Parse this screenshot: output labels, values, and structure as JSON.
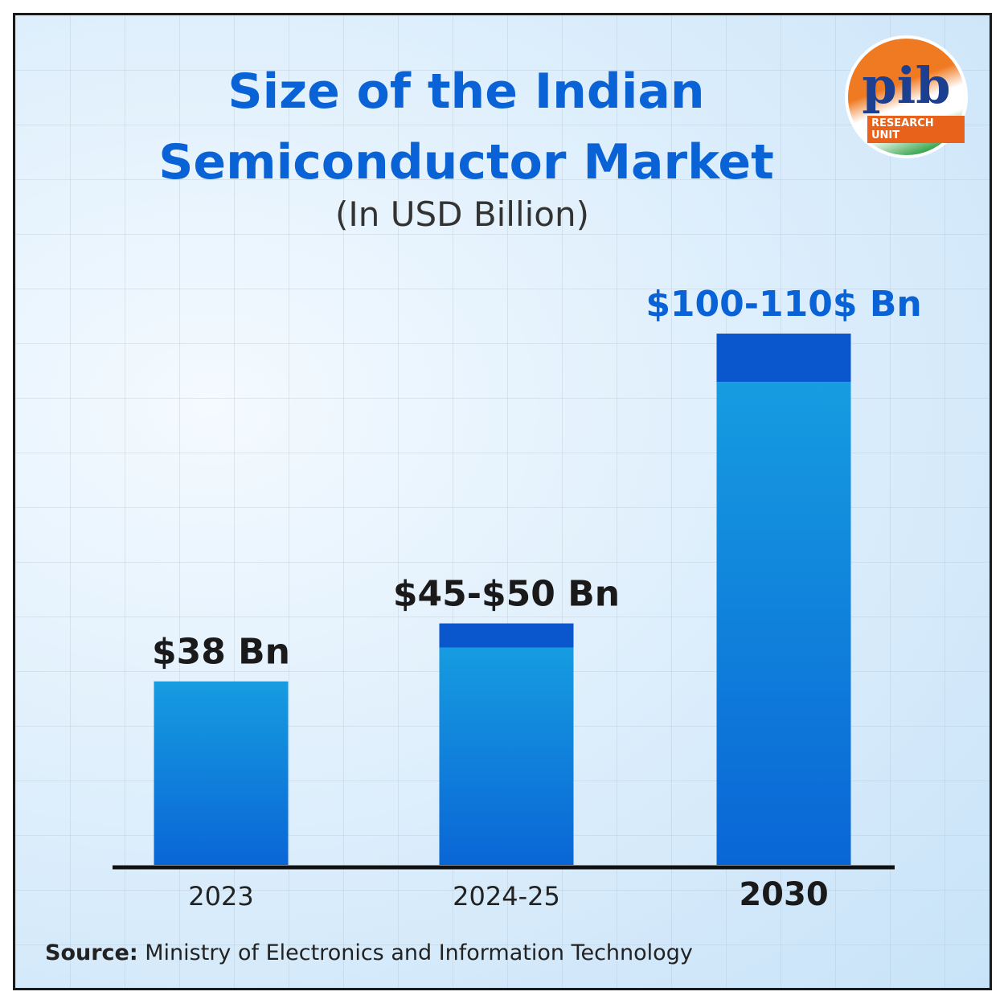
{
  "chart_data": {
    "type": "range_bar",
    "title": "Size of the Indian Semiconductor Market",
    "subtitle": "(In USD Billion)",
    "categories": [
      "2023",
      "2024-25",
      "2030"
    ],
    "values": [
      38,
      45,
      100
    ],
    "high_values": [
      38,
      50,
      110
    ],
    "value_labels": [
      "$38 Bn",
      "$45-$50 Bn",
      "$100-110$ Bn"
    ],
    "color": "#0c7fe0",
    "range_color": "#0a56cc",
    "ylim": [
      0,
      110
    ],
    "source_label": "Source:",
    "source": "Ministry of Electronics and Information Technology",
    "logo": {
      "text": "pib",
      "caption": "RESEARCH UNIT"
    }
  }
}
